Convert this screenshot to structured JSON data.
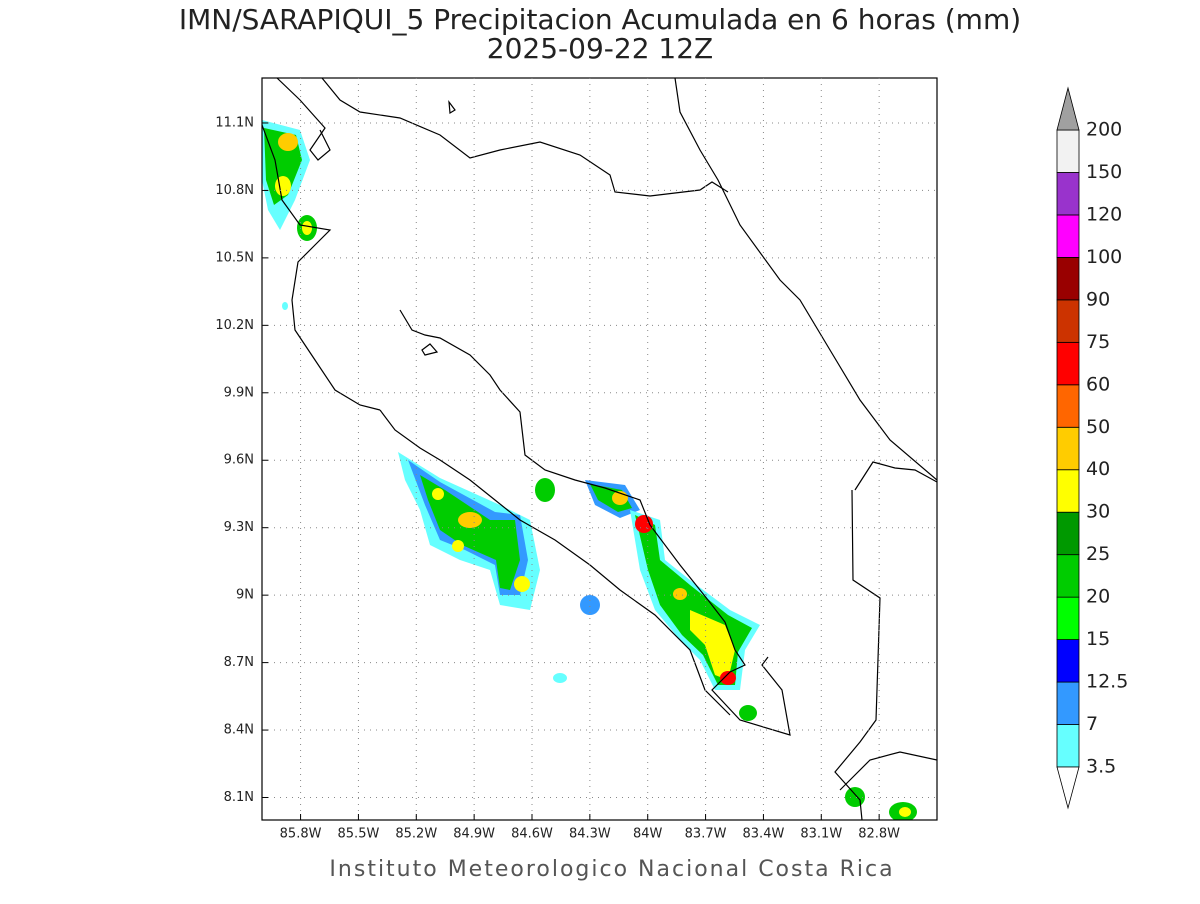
{
  "title": "IMN/SARAPIQUI_5 Precipitacion Acumulada en 6 horas (mm)",
  "subtitle": "2025-09-22 12Z",
  "footer": "Instituto Meteorologico Nacional Costa Rica",
  "map": {
    "xlim": [
      -86,
      -82.5
    ],
    "ylim": [
      8,
      11.3
    ],
    "xticks": [
      {
        "value": -85.8,
        "label": "85.8W"
      },
      {
        "value": -85.5,
        "label": "85.5W"
      },
      {
        "value": -85.2,
        "label": "85.2W"
      },
      {
        "value": -84.9,
        "label": "84.9W"
      },
      {
        "value": -84.6,
        "label": "84.6W"
      },
      {
        "value": -84.3,
        "label": "84.3W"
      },
      {
        "value": -84,
        "label": "84W"
      },
      {
        "value": -83.7,
        "label": "83.7W"
      },
      {
        "value": -83.4,
        "label": "83.4W"
      },
      {
        "value": -83.1,
        "label": "83.1W"
      },
      {
        "value": -82.8,
        "label": "82.8W"
      }
    ],
    "yticks": [
      {
        "value": 11.1,
        "label": "11.1N"
      },
      {
        "value": 10.8,
        "label": "10.8N"
      },
      {
        "value": 10.5,
        "label": "10.5N"
      },
      {
        "value": 10.2,
        "label": "10.2N"
      },
      {
        "value": 9.9,
        "label": "9.9N"
      },
      {
        "value": 9.6,
        "label": "9.6N"
      },
      {
        "value": 9.3,
        "label": "9.3N"
      },
      {
        "value": 9,
        "label": "9N"
      },
      {
        "value": 8.7,
        "label": "8.7N"
      },
      {
        "value": 8.4,
        "label": "8.4N"
      },
      {
        "value": 8.1,
        "label": "8.1N"
      }
    ],
    "grid": true
  },
  "colorbar": {
    "levels": [
      3.5,
      7,
      12.5,
      15,
      20,
      25,
      30,
      40,
      50,
      60,
      75,
      90,
      100,
      120,
      150,
      200
    ],
    "colors": [
      "#66ffff",
      "#3399ff",
      "#0000ff",
      "#00ff00",
      "#00cc00",
      "#009900",
      "#ffff00",
      "#ffcc00",
      "#ff6600",
      "#ff0000",
      "#cc3300",
      "#990000",
      "#ff00ff",
      "#9933cc",
      "#f2f2f2"
    ],
    "under_color": "#ffffff",
    "over_color": "#a0a0a0"
  }
}
